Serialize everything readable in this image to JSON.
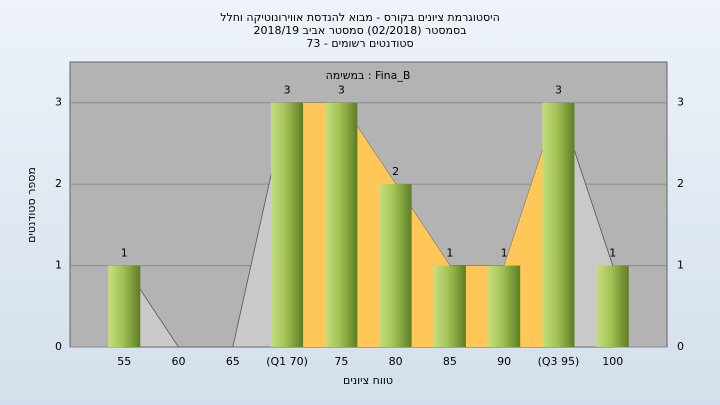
{
  "chart_data": {
    "type": "bar",
    "title": "היסטוגרמת ציונים בקורס - מבוא להנדסת אווירונוטיקה וחלל",
    "subtitle": "בסמסטר (02/2018) סמסטר אביב 2018/19",
    "note": "סטודנטים רשומים - 73",
    "annotation": "במשימה : Fina_B",
    "x_label": "טווח ציונים",
    "y_label": "מספר סטודנטים",
    "categories": [
      "55",
      "60",
      "65",
      "(Q1 70)",
      "75",
      "80",
      "85",
      "90",
      "(Q3 95)",
      "100"
    ],
    "values": [
      1,
      0,
      0,
      3,
      3,
      2,
      1,
      1,
      3,
      1
    ],
    "color": "#8fb34a",
    "area_color": "#c9c9c9",
    "highlight_color": "#ffc758",
    "ylim": [
      0,
      3.5
    ],
    "yticks": [
      0,
      1,
      2,
      3
    ],
    "grid": true
  }
}
